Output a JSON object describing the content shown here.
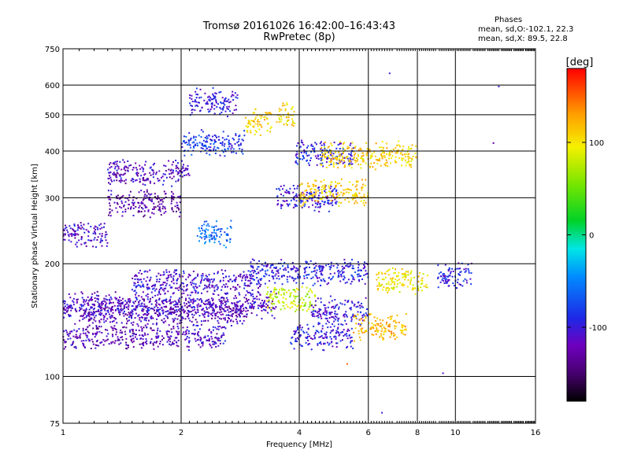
{
  "header": {
    "title": "Tromsø 20161026 16:42:00–16:43:43",
    "subtitle": "RwPretec (8p)"
  },
  "stats": {
    "heading": "Phases",
    "line1": "mean, sd,O:-102.1, 22.3",
    "line2": "mean, sd,X:  89.5, 22.8"
  },
  "colorbar": {
    "unit": "[deg]",
    "ticks": [
      {
        "value": 100,
        "label": "100"
      },
      {
        "value": 0,
        "label": "0"
      },
      {
        "value": -100,
        "label": "-100"
      }
    ],
    "range": [
      -180,
      180
    ]
  },
  "chart_data": {
    "type": "scatter",
    "title": "Tromsø 20161026 16:42:00–16:43:43",
    "subtitle": "RwPretec (8p)",
    "xlabel": "Frequency [MHz]",
    "ylabel": "Stationary phase Virtual Height [km]",
    "x_scale": "log",
    "y_scale": "log",
    "xlim": [
      1,
      16
    ],
    "ylim": [
      75,
      750
    ],
    "x_ticks": [
      1,
      2,
      4,
      6,
      8,
      10,
      16
    ],
    "y_ticks": [
      75,
      100,
      200,
      300,
      400,
      500,
      600,
      750
    ],
    "grid": true,
    "color_metric": "phase [deg]",
    "clusters": [
      {
        "x_range": [
          1.0,
          2.0
        ],
        "y": 128,
        "phase": -120
      },
      {
        "x_range": [
          2.0,
          2.6
        ],
        "y": 128,
        "phase": -110
      },
      {
        "x_range": [
          3.8,
          5.5
        ],
        "y": 128,
        "phase": -100
      },
      {
        "x_range": [
          1.1,
          2.9
        ],
        "y": 148,
        "phase": -118
      },
      {
        "x_range": [
          1.0,
          3.5
        ],
        "y": 155,
        "phase": -112
      },
      {
        "x_range": [
          3.3,
          4.4
        ],
        "y": 160,
        "phase": 80
      },
      {
        "x_range": [
          4.3,
          6.0
        ],
        "y": 150,
        "phase": -100
      },
      {
        "x_range": [
          5.5,
          7.5
        ],
        "y": 135,
        "phase": 120
      },
      {
        "x_range": [
          1.5,
          3.2
        ],
        "y": 178,
        "phase": -108
      },
      {
        "x_range": [
          3.0,
          6.0
        ],
        "y": 190,
        "phase": -95
      },
      {
        "x_range": [
          6.3,
          8.5
        ],
        "y": 180,
        "phase": 100
      },
      {
        "x_range": [
          9.0,
          11.0
        ],
        "y": 185,
        "phase": -95
      },
      {
        "x_range": [
          2.2,
          2.7
        ],
        "y": 240,
        "phase": -60
      },
      {
        "x_range": [
          1.0,
          1.3
        ],
        "y": 240,
        "phase": -110
      },
      {
        "x_range": [
          1.3,
          2.0
        ],
        "y": 290,
        "phase": -125
      },
      {
        "x_range": [
          3.5,
          5.0
        ],
        "y": 300,
        "phase": -100
      },
      {
        "x_range": [
          4.0,
          6.0
        ],
        "y": 310,
        "phase": 110
      },
      {
        "x_range": [
          1.3,
          2.1
        ],
        "y": 350,
        "phase": -115
      },
      {
        "x_range": [
          2.0,
          2.9
        ],
        "y": 420,
        "phase": -85
      },
      {
        "x_range": [
          2.1,
          2.8
        ],
        "y": 540,
        "phase": -100
      },
      {
        "x_range": [
          2.9,
          3.4
        ],
        "y": 480,
        "phase": 110
      },
      {
        "x_range": [
          3.5,
          3.9
        ],
        "y": 500,
        "phase": 105
      },
      {
        "x_range": [
          3.9,
          5.5
        ],
        "y": 395,
        "phase": -95
      },
      {
        "x_range": [
          4.5,
          8.0
        ],
        "y": 390,
        "phase": 110
      }
    ],
    "outliers": [
      {
        "x": 12.5,
        "y": 420,
        "phase": -130
      },
      {
        "x": 12.9,
        "y": 595,
        "phase": -100
      },
      {
        "x": 6.5,
        "y": 80,
        "phase": -100
      },
      {
        "x": 9.3,
        "y": 102,
        "phase": -110
      },
      {
        "x": 6.8,
        "y": 645,
        "phase": -100
      },
      {
        "x": 5.3,
        "y": 108,
        "phase": 150
      }
    ]
  }
}
